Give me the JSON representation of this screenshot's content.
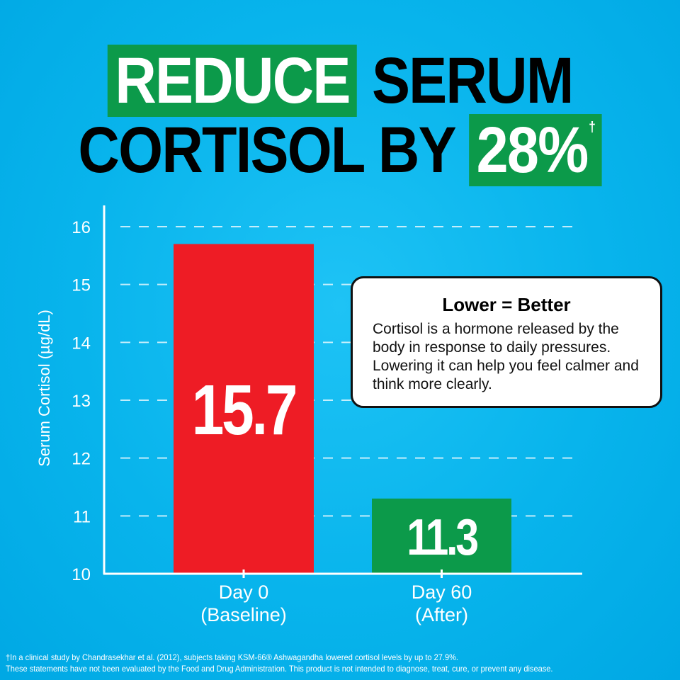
{
  "headline": {
    "line1_highlight": "REDUCE",
    "line1_rest": "SERUM",
    "line2_rest": "CORTISOL BY",
    "line2_highlight": "28%",
    "dagger": "†"
  },
  "colors": {
    "background": "#08b4ec",
    "baseline_bar": "#ee1c25",
    "after_bar": "#0c9a4a",
    "highlight": "#0c9a4a"
  },
  "chart_data": {
    "type": "bar",
    "categories": [
      "Day 0\n(Baseline)",
      "Day 60\n(After)"
    ],
    "category_lines": [
      [
        "Day 0",
        "(Baseline)"
      ],
      [
        "Day 60",
        "(After)"
      ]
    ],
    "values": [
      15.7,
      11.3
    ],
    "data_labels": [
      "15.7",
      "11.3"
    ],
    "ylabel": "Serum Cortisol (µg/dL)",
    "ylim": [
      10,
      16
    ],
    "yticks": [
      10,
      11,
      12,
      13,
      14,
      15,
      16
    ],
    "grid": true,
    "bar_colors": [
      "#ee1c25",
      "#0c9a4a"
    ]
  },
  "callout": {
    "title": "Lower = Better",
    "body": "Cortisol is a hormone released by the body in response to daily pressures. Lowering it can help you feel calmer and think more clearly."
  },
  "footnotes": [
    "†In a clinical study by Chandrasekhar et al. (2012), subjects taking KSM-66® Ashwagandha lowered cortisol levels by up to 27.9%.",
    "These statements have not been evaluated by the Food and Drug Administration. This product is not intended to diagnose, treat, cure, or prevent any disease."
  ]
}
